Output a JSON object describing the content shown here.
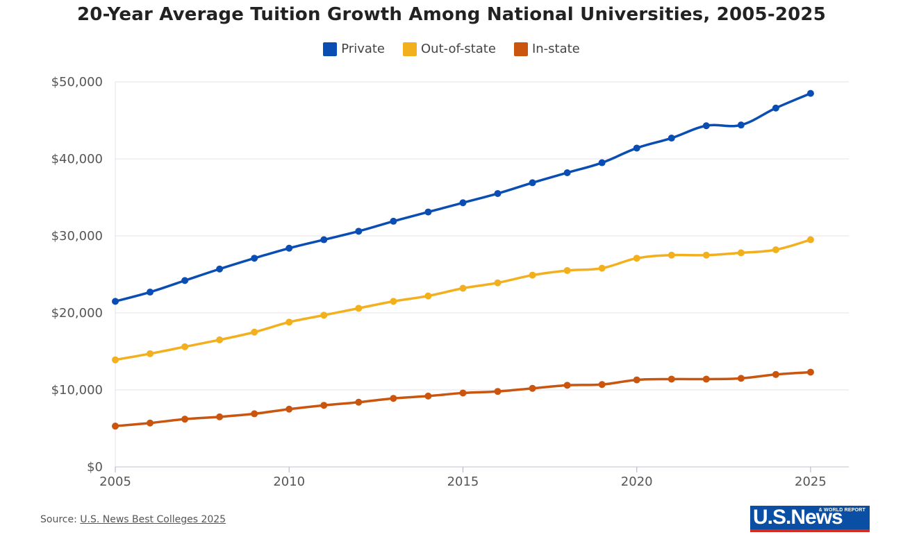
{
  "colors": {
    "private": "#0a4db3",
    "out_of_state": "#f2b01e",
    "in_state": "#c9550e",
    "grid": "#e9e6ef",
    "axis_text": "#555555"
  },
  "legend": {
    "private": "Private",
    "out_of_state": "Out-of-state",
    "in_state": "In-state"
  },
  "source": {
    "prefix": "Source: ",
    "link_text": "U.S. News Best Colleges 2025"
  },
  "logo": {
    "word": "U.S.News",
    "sub": "& WORLD REPORT"
  },
  "chart_data": {
    "type": "line",
    "title": "20-Year Average Tuition Growth Among National Universities, 2005-2025",
    "xlabel": "",
    "ylabel": "",
    "x": [
      2005,
      2006,
      2007,
      2008,
      2009,
      2010,
      2011,
      2012,
      2013,
      2014,
      2015,
      2016,
      2017,
      2018,
      2019,
      2020,
      2021,
      2022,
      2023,
      2024,
      2025
    ],
    "xlim": [
      2005,
      2026.1
    ],
    "ylim": [
      0,
      50000
    ],
    "x_ticks": [
      "2005",
      "2010",
      "2015",
      "2020",
      "2025"
    ],
    "y_ticks": [
      "$0",
      "$10,000",
      "$20,000",
      "$30,000",
      "$40,000",
      "$50,000"
    ],
    "legend_position": "top-center",
    "grid": "horizontal",
    "series": [
      {
        "name": "Private",
        "values": [
          21500,
          22700,
          24200,
          25700,
          27100,
          28400,
          29500,
          30600,
          31900,
          33100,
          34300,
          35500,
          36900,
          38200,
          39500,
          41400,
          42700,
          44300,
          44400,
          46600,
          48500
        ]
      },
      {
        "name": "Out-of-state",
        "values": [
          13900,
          14700,
          15600,
          16500,
          17500,
          18800,
          19700,
          20600,
          21500,
          22200,
          23200,
          23900,
          24900,
          25500,
          25800,
          27100,
          27500,
          27500,
          27800,
          28200,
          29500
        ]
      },
      {
        "name": "In-state",
        "values": [
          5300,
          5700,
          6200,
          6500,
          6900,
          7500,
          8000,
          8400,
          8900,
          9200,
          9600,
          9800,
          10200,
          10600,
          10700,
          11300,
          11400,
          11400,
          11500,
          12000,
          12300
        ]
      }
    ]
  }
}
